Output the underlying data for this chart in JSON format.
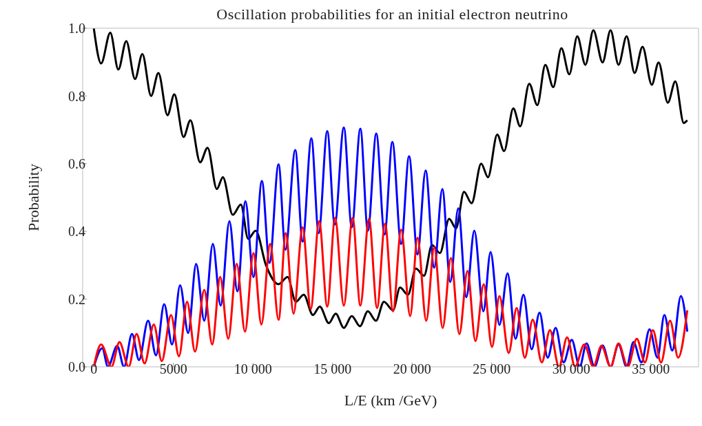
{
  "chart_data": {
    "type": "line",
    "title": "Oscillation probabilities for an initial electron neutrino",
    "xlabel": "L/E (km /GeV)",
    "ylabel": "Probability",
    "xlim": [
      -700,
      38000
    ],
    "ylim": [
      0,
      1
    ],
    "xticks": [
      0,
      5000,
      {
        "value": 10000,
        "label": "10 000"
      },
      {
        "value": 15000,
        "label": "15 000"
      },
      {
        "value": 20000,
        "label": "20 000"
      },
      {
        "value": 25000,
        "label": "25 000"
      },
      {
        "value": 30000,
        "label": "30 000"
      },
      {
        "value": 35000,
        "label": "35 000"
      }
    ],
    "yticks": [
      {
        "value": 0,
        "label": "0.0"
      },
      0.2,
      0.4,
      0.6,
      0.8,
      {
        "value": 1,
        "label": "1.0"
      }
    ],
    "line_style": "solid",
    "series": [
      {
        "color": "#000000",
        "x": [
          0,
          460,
          1036,
          1540,
          2040,
          2590,
          3050,
          3600,
          4060,
          4630,
          5060,
          5640,
          6070,
          6680,
          7150,
          7730,
          8110,
          8730,
          9240,
          9700,
          10170,
          10820,
          11610,
          12180,
          12690,
          13190,
          13770,
          14200,
          14770,
          15200,
          15710,
          16210,
          16720,
          17220,
          17730,
          18230,
          18800,
          19240,
          19740,
          20240,
          20750,
          21250,
          21750,
          22330,
          22760,
          23260,
          23740,
          24340,
          24770,
          25350,
          25780,
          26360,
          26790,
          27360,
          27870,
          28370,
          28870,
          29380,
          29880,
          30380,
          30890,
          31390,
          31970,
          32470,
          32970,
          33480,
          33980,
          34480,
          35060,
          35490,
          36070,
          36540,
          37070,
          37290
        ],
        "values": [
          1.0,
          0.896,
          0.987,
          0.878,
          0.962,
          0.85,
          0.924,
          0.8,
          0.868,
          0.743,
          0.805,
          0.679,
          0.728,
          0.604,
          0.647,
          0.525,
          0.56,
          0.449,
          0.479,
          0.378,
          0.402,
          0.3,
          0.244,
          0.265,
          0.192,
          0.213,
          0.153,
          0.178,
          0.129,
          0.157,
          0.115,
          0.15,
          0.12,
          0.164,
          0.136,
          0.192,
          0.167,
          0.234,
          0.213,
          0.29,
          0.269,
          0.36,
          0.336,
          0.437,
          0.409,
          0.517,
          0.483,
          0.6,
          0.56,
          0.686,
          0.637,
          0.763,
          0.71,
          0.836,
          0.773,
          0.892,
          0.826,
          0.941,
          0.864,
          0.976,
          0.892,
          0.994,
          0.899,
          0.994,
          0.892,
          0.976,
          0.868,
          0.945,
          0.833,
          0.899,
          0.78,
          0.843,
          0.72,
          0.728
        ]
      },
      {
        "color": "#0000ff",
        "x": [
          0,
          530,
          890,
          1470,
          1900,
          2400,
          2840,
          3410,
          3910,
          4420,
          4920,
          5420,
          5930,
          6430,
          6940,
          7480,
          7970,
          8520,
          9020,
          9530,
          10030,
          10560,
          11040,
          11610,
          12040,
          12660,
          13120,
          13670,
          14130,
          14670,
          15140,
          15710,
          16210,
          16750,
          17220,
          17750,
          18270,
          18760,
          19310,
          19810,
          20340,
          20850,
          21390,
          21900,
          22400,
          22900,
          23410,
          23910,
          24480,
          24930,
          25490,
          26000,
          26500,
          27000,
          27510,
          28010,
          28520,
          29020,
          29520,
          30030,
          30530,
          30960,
          31460,
          31970,
          32470,
          32970,
          33480,
          33910,
          34410,
          34920,
          35420,
          35850,
          36350,
          36890,
          37290
        ],
        "values": [
          0,
          0.055,
          0,
          0.062,
          0,
          0.097,
          0.02,
          0.136,
          0.034,
          0.185,
          0.066,
          0.241,
          0.1,
          0.304,
          0.136,
          0.363,
          0.181,
          0.43,
          0.223,
          0.489,
          0.265,
          0.549,
          0.307,
          0.598,
          0.346,
          0.64,
          0.37,
          0.675,
          0.395,
          0.696,
          0.42,
          0.707,
          0.412,
          0.703,
          0.402,
          0.689,
          0.391,
          0.664,
          0.363,
          0.622,
          0.332,
          0.58,
          0.293,
          0.525,
          0.251,
          0.468,
          0.206,
          0.402,
          0.164,
          0.339,
          0.124,
          0.276,
          0.083,
          0.213,
          0.052,
          0.16,
          0.027,
          0.115,
          0.013,
          0.08,
          0,
          0.069,
          0,
          0.063,
          0,
          0.066,
          0,
          0.073,
          0.013,
          0.111,
          0.027,
          0.153,
          0.048,
          0.209,
          0.104
        ]
      },
      {
        "color": "#ff0000",
        "x": [
          0,
          460,
          1110,
          1610,
          2190,
          2690,
          3190,
          3770,
          4270,
          4850,
          5350,
          5860,
          6360,
          6940,
          7440,
          7940,
          8450,
          8980,
          9500,
          10030,
          10530,
          11080,
          11610,
          12060,
          12550,
          13120,
          13630,
          14160,
          14670,
          15160,
          15710,
          16260,
          16750,
          17290,
          17800,
          18300,
          18800,
          19310,
          19880,
          20340,
          20890,
          21390,
          21920,
          22440,
          22970,
          23480,
          23980,
          24500,
          25020,
          25490,
          26070,
          26570,
          27080,
          27580,
          28150,
          28660,
          29230,
          29740,
          30240,
          30820,
          31390,
          31900,
          32470,
          32970,
          33550,
          34120,
          34630,
          35130,
          35640,
          36210,
          36720,
          37290
        ],
        "values": [
          0,
          0.066,
          0,
          0.073,
          0,
          0.097,
          0.01,
          0.125,
          0.017,
          0.153,
          0.031,
          0.192,
          0.045,
          0.227,
          0.066,
          0.265,
          0.083,
          0.304,
          0.104,
          0.336,
          0.125,
          0.363,
          0.139,
          0.395,
          0.157,
          0.412,
          0.171,
          0.43,
          0.178,
          0.44,
          0.181,
          0.44,
          0.181,
          0.437,
          0.174,
          0.423,
          0.164,
          0.405,
          0.15,
          0.381,
          0.136,
          0.353,
          0.115,
          0.321,
          0.097,
          0.283,
          0.076,
          0.244,
          0.059,
          0.209,
          0.041,
          0.174,
          0.027,
          0.139,
          0.013,
          0.108,
          0,
          0.087,
          0,
          0.066,
          0,
          0.062,
          0,
          0.069,
          0,
          0.083,
          0.013,
          0.108,
          0.013,
          0.136,
          0.027,
          0.167
        ]
      }
    ]
  }
}
